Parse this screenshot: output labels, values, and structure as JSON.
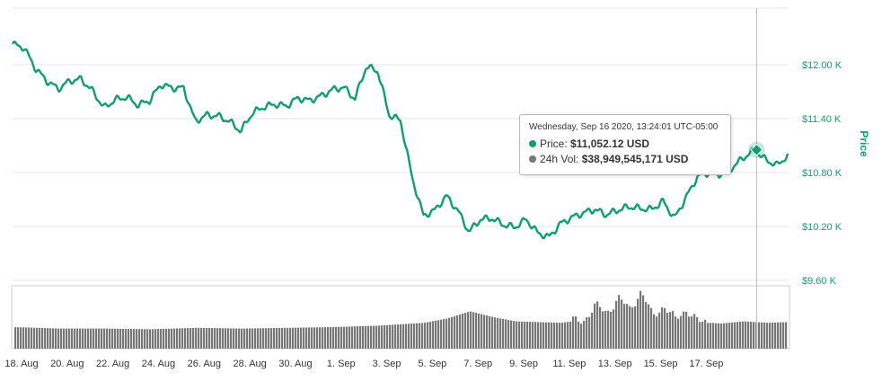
{
  "chart_data": {
    "type": "line",
    "series": [
      {
        "name": "Price",
        "unit": "USD",
        "color": "#0e9f6e",
        "x_days": [
          0.0,
          0.5,
          1.0,
          1.5,
          2.0,
          2.5,
          3.0,
          3.5,
          4.0,
          4.5,
          5.0,
          5.5,
          6.0,
          6.5,
          7.0,
          7.5,
          8.0,
          8.5,
          9.0,
          9.5,
          10.0,
          10.5,
          11.0,
          11.5,
          12.0,
          12.5,
          13.0,
          13.5,
          14.0,
          14.5,
          15.0,
          15.5,
          16.0,
          16.5,
          17.0,
          17.5,
          18.0,
          18.5,
          19.0,
          19.5,
          20.0,
          20.5,
          21.0,
          21.5,
          22.0,
          22.5,
          23.0,
          23.5,
          24.0,
          24.5,
          25.0,
          25.5,
          26.0,
          26.5,
          27.0,
          27.5,
          28.0,
          28.5,
          29.0,
          29.5,
          30.0,
          30.5,
          31.0,
          31.5,
          32.0,
          32.5,
          33.0,
          33.5,
          34.0
        ],
        "values": [
          12230,
          12190,
          11960,
          11820,
          11730,
          11820,
          11840,
          11710,
          11520,
          11610,
          11640,
          11550,
          11600,
          11780,
          11740,
          11740,
          11370,
          11440,
          11430,
          11370,
          11260,
          11460,
          11530,
          11560,
          11540,
          11630,
          11600,
          11650,
          11720,
          11750,
          11620,
          11980,
          11930,
          11440,
          11380,
          10750,
          10320,
          10380,
          10540,
          10380,
          10140,
          10280,
          10290,
          10220,
          10190,
          10280,
          10130,
          10080,
          10230,
          10300,
          10350,
          10390,
          10330,
          10380,
          10420,
          10400,
          10390,
          10480,
          10290,
          10520,
          10750,
          10800,
          10780,
          10850,
          10960,
          11050,
          10940,
          10880,
          11000
        ]
      },
      {
        "name": "24h Vol",
        "unit": "USD",
        "color": "#777777",
        "x_days": [
          0,
          2,
          4,
          6,
          8,
          10,
          12,
          14,
          15,
          16,
          17,
          18,
          19,
          20,
          21,
          22,
          23,
          24,
          25,
          25.5,
          26,
          26.5,
          27,
          27.5,
          28,
          28.5,
          29,
          29.5,
          30,
          31,
          32,
          33,
          34
        ],
        "values": [
          30,
          28,
          28,
          27,
          29,
          28,
          29,
          30,
          31,
          32,
          34,
          36,
          42,
          52,
          44,
          38,
          37,
          36,
          40,
          60,
          50,
          70,
          55,
          80,
          45,
          60,
          40,
          55,
          37,
          35,
          38,
          36,
          37
        ]
      }
    ],
    "x_ticks": [
      "18. Aug",
      "20. Aug",
      "22. Aug",
      "24. Aug",
      "26. Aug",
      "28. Aug",
      "30. Aug",
      "1. Sep",
      "3. Sep",
      "5. Sep",
      "7. Sep",
      "9. Sep",
      "11. Sep",
      "13. Sep",
      "15. Sep",
      "17. Sep"
    ],
    "y_ticks": [
      "$12.00 K",
      "$11.40 K",
      "$10.80 K",
      "$10.20 K",
      "$9.60 K"
    ],
    "y_tick_values": [
      12000,
      11400,
      10800,
      10200,
      9600
    ],
    "ylabel": "Price",
    "grid": true,
    "tooltip": {
      "date": "Wednesday, Sep 16 2020, 13:24:01 UTC-05:00",
      "price_label": "Price:",
      "price_value": "$11,052.12 USD",
      "vol_label": "24h Vol:",
      "vol_value": "$38,949,545,171 USD",
      "x_day": 32.6
    }
  }
}
